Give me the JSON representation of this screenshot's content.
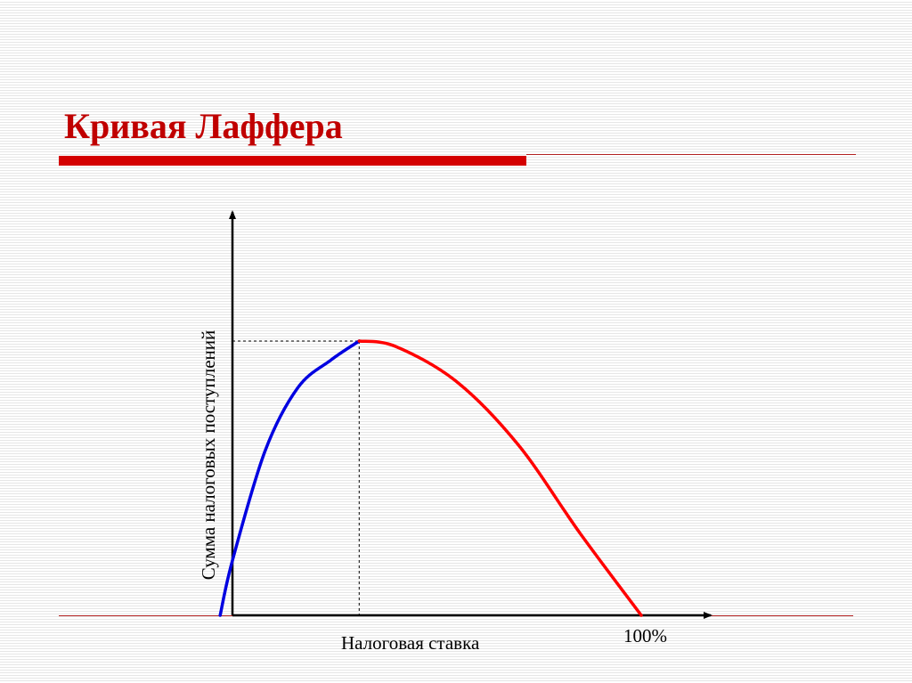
{
  "slide": {
    "title": "Кривая Лаффера"
  },
  "colors": {
    "title": "#c00000",
    "bar": "#d40000",
    "thin_line": "#b22222",
    "blue_curve": "#0000e0",
    "red_curve": "#ff0000",
    "axis": "#000000"
  },
  "chart_data": {
    "type": "line",
    "xlabel": "Налоговая ставка",
    "ylabel": "Сумма налоговых поступлений",
    "x_end_label": "100%",
    "xlim": [
      0,
      100
    ],
    "ylim": [
      0,
      100
    ],
    "grid": false,
    "peak": {
      "x": 31,
      "y": 100
    },
    "series": [
      {
        "color": "blue",
        "x": [
          -3,
          0,
          8,
          16,
          24,
          31
        ],
        "y": [
          0,
          20,
          60,
          83,
          93,
          100
        ]
      },
      {
        "color": "red",
        "x": [
          31,
          40,
          55,
          70,
          85,
          100
        ],
        "y": [
          100,
          98,
          85,
          62,
          30,
          0
        ]
      }
    ]
  }
}
